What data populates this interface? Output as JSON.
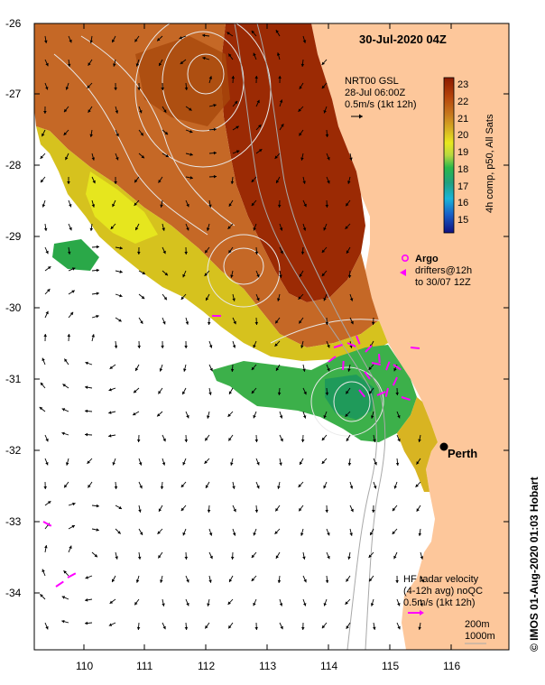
{
  "header": {
    "timestamp": "30-Jul-2020 04Z"
  },
  "axes": {
    "lat_ticks": [
      "-26",
      "-27",
      "-28",
      "-29",
      "-30",
      "-31",
      "-32",
      "-33",
      "-34"
    ],
    "lon_ticks": [
      "110",
      "111",
      "112",
      "113",
      "114",
      "115",
      "116"
    ]
  },
  "current_legend": {
    "line1": "NRT00 GSL",
    "line2": "28-Jul 06:00Z",
    "line3": "0.5m/s (1kt 12h)"
  },
  "colorbar": {
    "ticks": [
      "23",
      "22",
      "21",
      "20",
      "19",
      "18",
      "17",
      "16",
      "15"
    ],
    "label": "4h comp, p50, All Sats",
    "colors": [
      "#8b1a00",
      "#b5420a",
      "#c87a1e",
      "#d8b422",
      "#e8e81e",
      "#b8d840",
      "#2ab84a",
      "#20a080",
      "#18b4d8",
      "#1860c8",
      "#101080"
    ]
  },
  "argo_legend": {
    "title": "Argo",
    "line1": "drifters@12h",
    "line2": "to 30/07 12Z"
  },
  "city": {
    "name": "Perth"
  },
  "hf_legend": {
    "line1": "HF radar velocity",
    "line2": "(4-12h avg) noQC",
    "line3": "0.5m/s (1kt 12h)"
  },
  "depth_legend": {
    "line1": "200m",
    "line2": "1000m"
  },
  "credit": {
    "text": "© IMOS 01-Aug-2020 01:03 Hobart"
  },
  "colors": {
    "land": "#fdc79b",
    "ocean": "#ffffff",
    "drifter": "#ff00ff",
    "contour": "#e0e0e0"
  }
}
